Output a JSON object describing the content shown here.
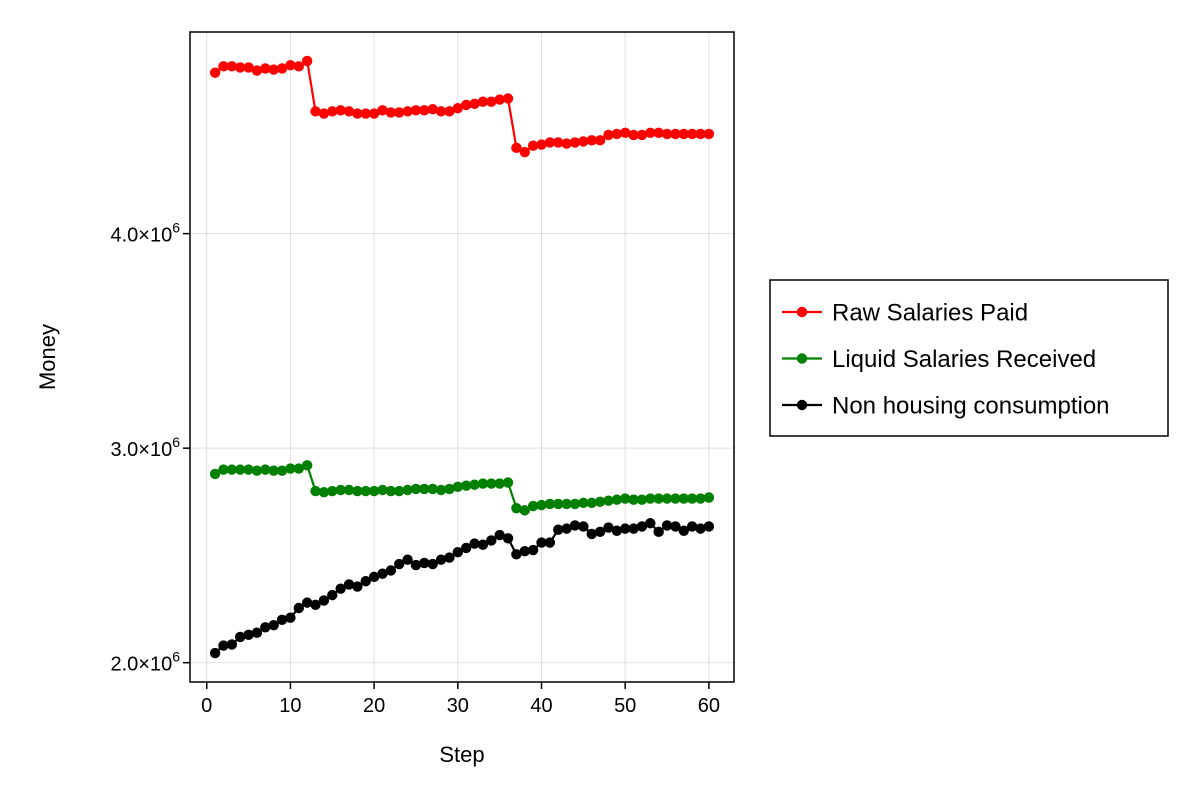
{
  "chart_data": {
    "type": "line",
    "xlabel": "Step",
    "ylabel": "Money",
    "xlim": [
      -2,
      63
    ],
    "ylim": [
      1910000,
      4940000
    ],
    "x_ticks": [
      0,
      10,
      20,
      30,
      40,
      50,
      60
    ],
    "x_tick_labels": [
      "0",
      "10",
      "20",
      "30",
      "40",
      "50",
      "60"
    ],
    "y_ticks": [
      2000000,
      3000000,
      4000000
    ],
    "y_tick_labels": [
      {
        "mantissa": "2.0×10",
        "exp": "6"
      },
      {
        "mantissa": "3.0×10",
        "exp": "6"
      },
      {
        "mantissa": "4.0×10",
        "exp": "6"
      }
    ],
    "grid": true,
    "legend_position": "right",
    "x": [
      1,
      2,
      3,
      4,
      5,
      6,
      7,
      8,
      9,
      10,
      11,
      12,
      13,
      14,
      15,
      16,
      17,
      18,
      19,
      20,
      21,
      22,
      23,
      24,
      25,
      26,
      27,
      28,
      29,
      30,
      31,
      32,
      33,
      34,
      35,
      36,
      37,
      38,
      39,
      40,
      41,
      42,
      43,
      44,
      45,
      46,
      47,
      48,
      49,
      50,
      51,
      52,
      53,
      54,
      55,
      56,
      57,
      58,
      59,
      60
    ],
    "series": [
      {
        "name": "Raw Salaries Paid",
        "color": "#ff0000",
        "values": [
          4750000,
          4780000,
          4780000,
          4775000,
          4775000,
          4760000,
          4770000,
          4765000,
          4770000,
          4785000,
          4780000,
          4805000,
          4570000,
          4560000,
          4570000,
          4575000,
          4570000,
          4560000,
          4560000,
          4560000,
          4575000,
          4565000,
          4565000,
          4570000,
          4575000,
          4575000,
          4580000,
          4570000,
          4570000,
          4585000,
          4600000,
          4605000,
          4615000,
          4615000,
          4625000,
          4630000,
          4400000,
          4380000,
          4410000,
          4415000,
          4425000,
          4425000,
          4420000,
          4425000,
          4430000,
          4435000,
          4435000,
          4460000,
          4465000,
          4470000,
          4460000,
          4460000,
          4470000,
          4470000,
          4465000,
          4465000,
          4465000,
          4465000,
          4465000,
          4465000
        ]
      },
      {
        "name": "Liquid Salaries Received",
        "color": "#008000",
        "values": [
          2880000,
          2900000,
          2900000,
          2900000,
          2900000,
          2895000,
          2900000,
          2895000,
          2895000,
          2905000,
          2905000,
          2920000,
          2800000,
          2795000,
          2800000,
          2805000,
          2805000,
          2800000,
          2800000,
          2800000,
          2805000,
          2800000,
          2800000,
          2805000,
          2810000,
          2810000,
          2810000,
          2805000,
          2810000,
          2820000,
          2825000,
          2830000,
          2835000,
          2835000,
          2835000,
          2840000,
          2720000,
          2710000,
          2730000,
          2735000,
          2740000,
          2740000,
          2740000,
          2740000,
          2745000,
          2745000,
          2750000,
          2755000,
          2760000,
          2765000,
          2760000,
          2760000,
          2765000,
          2765000,
          2765000,
          2765000,
          2765000,
          2765000,
          2765000,
          2770000
        ]
      },
      {
        "name": "Non housing consumption",
        "color": "#000000",
        "values": [
          2045000,
          2080000,
          2085000,
          2120000,
          2130000,
          2140000,
          2165000,
          2175000,
          2200000,
          2210000,
          2255000,
          2280000,
          2270000,
          2290000,
          2315000,
          2345000,
          2365000,
          2355000,
          2380000,
          2400000,
          2415000,
          2430000,
          2460000,
          2480000,
          2455000,
          2465000,
          2460000,
          2480000,
          2490000,
          2515000,
          2535000,
          2555000,
          2550000,
          2570000,
          2595000,
          2580000,
          2505000,
          2520000,
          2525000,
          2560000,
          2560000,
          2620000,
          2625000,
          2640000,
          2635000,
          2600000,
          2610000,
          2630000,
          2615000,
          2625000,
          2625000,
          2635000,
          2650000,
          2610000,
          2640000,
          2635000,
          2615000,
          2635000,
          2625000,
          2635000
        ]
      }
    ]
  }
}
